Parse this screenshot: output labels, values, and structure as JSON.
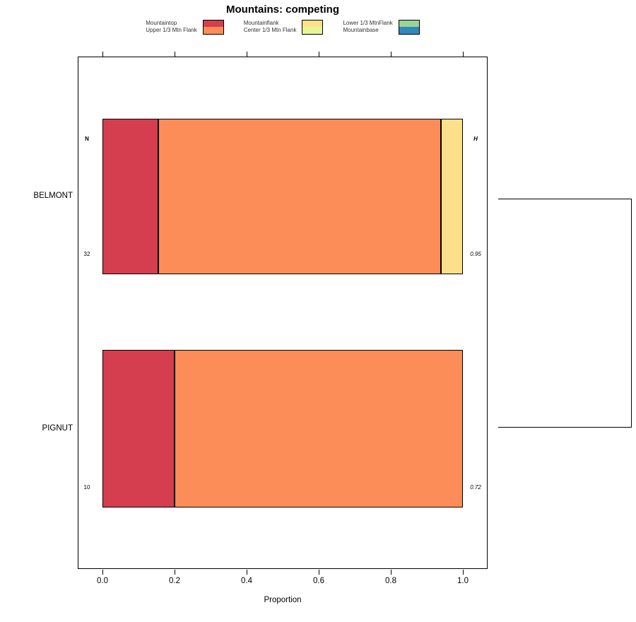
{
  "title": "Mountains: competing",
  "legend": {
    "groups": [
      {
        "lines": [
          "Mountaintop",
          "Upper 1/3 Mtn Flank"
        ],
        "colors": [
          "#D53E4F",
          "#FC8D59"
        ]
      },
      {
        "lines": [
          "Mountainflank",
          "Center 1/3 Mtn Flank"
        ],
        "colors": [
          "#FEE08B",
          "#E6F598"
        ]
      },
      {
        "lines": [
          "Lower 1/3 MtnFlank",
          "Mountainbase"
        ],
        "colors": [
          "#99D594",
          "#3288BD"
        ]
      }
    ]
  },
  "chart_data": {
    "type": "bar",
    "stacked": true,
    "orientation": "horizontal",
    "title": "Mountains: competing",
    "xlabel": "Proportion",
    "xlim": [
      0,
      1
    ],
    "xticks": [
      "0.0",
      "0.2",
      "0.4",
      "0.6",
      "0.8",
      "1.0"
    ],
    "grid": false,
    "legend_position": "top",
    "categories": [
      "BELMONT",
      "PIGNUT"
    ],
    "series": [
      {
        "name": "Mountaintop",
        "color": "#D53E4F",
        "values": [
          0.155,
          0.2
        ]
      },
      {
        "name": "Upper 1/3 Mtn Flank",
        "color": "#FC8D59",
        "values": [
          0.785,
          0.8
        ]
      },
      {
        "name": "Mountainflank",
        "color": "#FEE08B",
        "values": [
          0.06,
          0
        ]
      },
      {
        "name": "Center 1/3 Mtn Flank",
        "color": "#E6F598",
        "values": [
          0,
          0
        ]
      },
      {
        "name": "Lower 1/3 MtnFlank",
        "color": "#99D594",
        "values": [
          0,
          0
        ]
      },
      {
        "name": "Mountainbase",
        "color": "#3288BD",
        "values": [
          0,
          0
        ]
      }
    ],
    "row_annotations": {
      "headers": {
        "left": "N",
        "right": "H"
      },
      "rows": [
        {
          "category": "BELMONT",
          "N": "32",
          "H": "0.95"
        },
        {
          "category": "PIGNUT",
          "N": "10",
          "H": "0.72"
        }
      ]
    }
  }
}
